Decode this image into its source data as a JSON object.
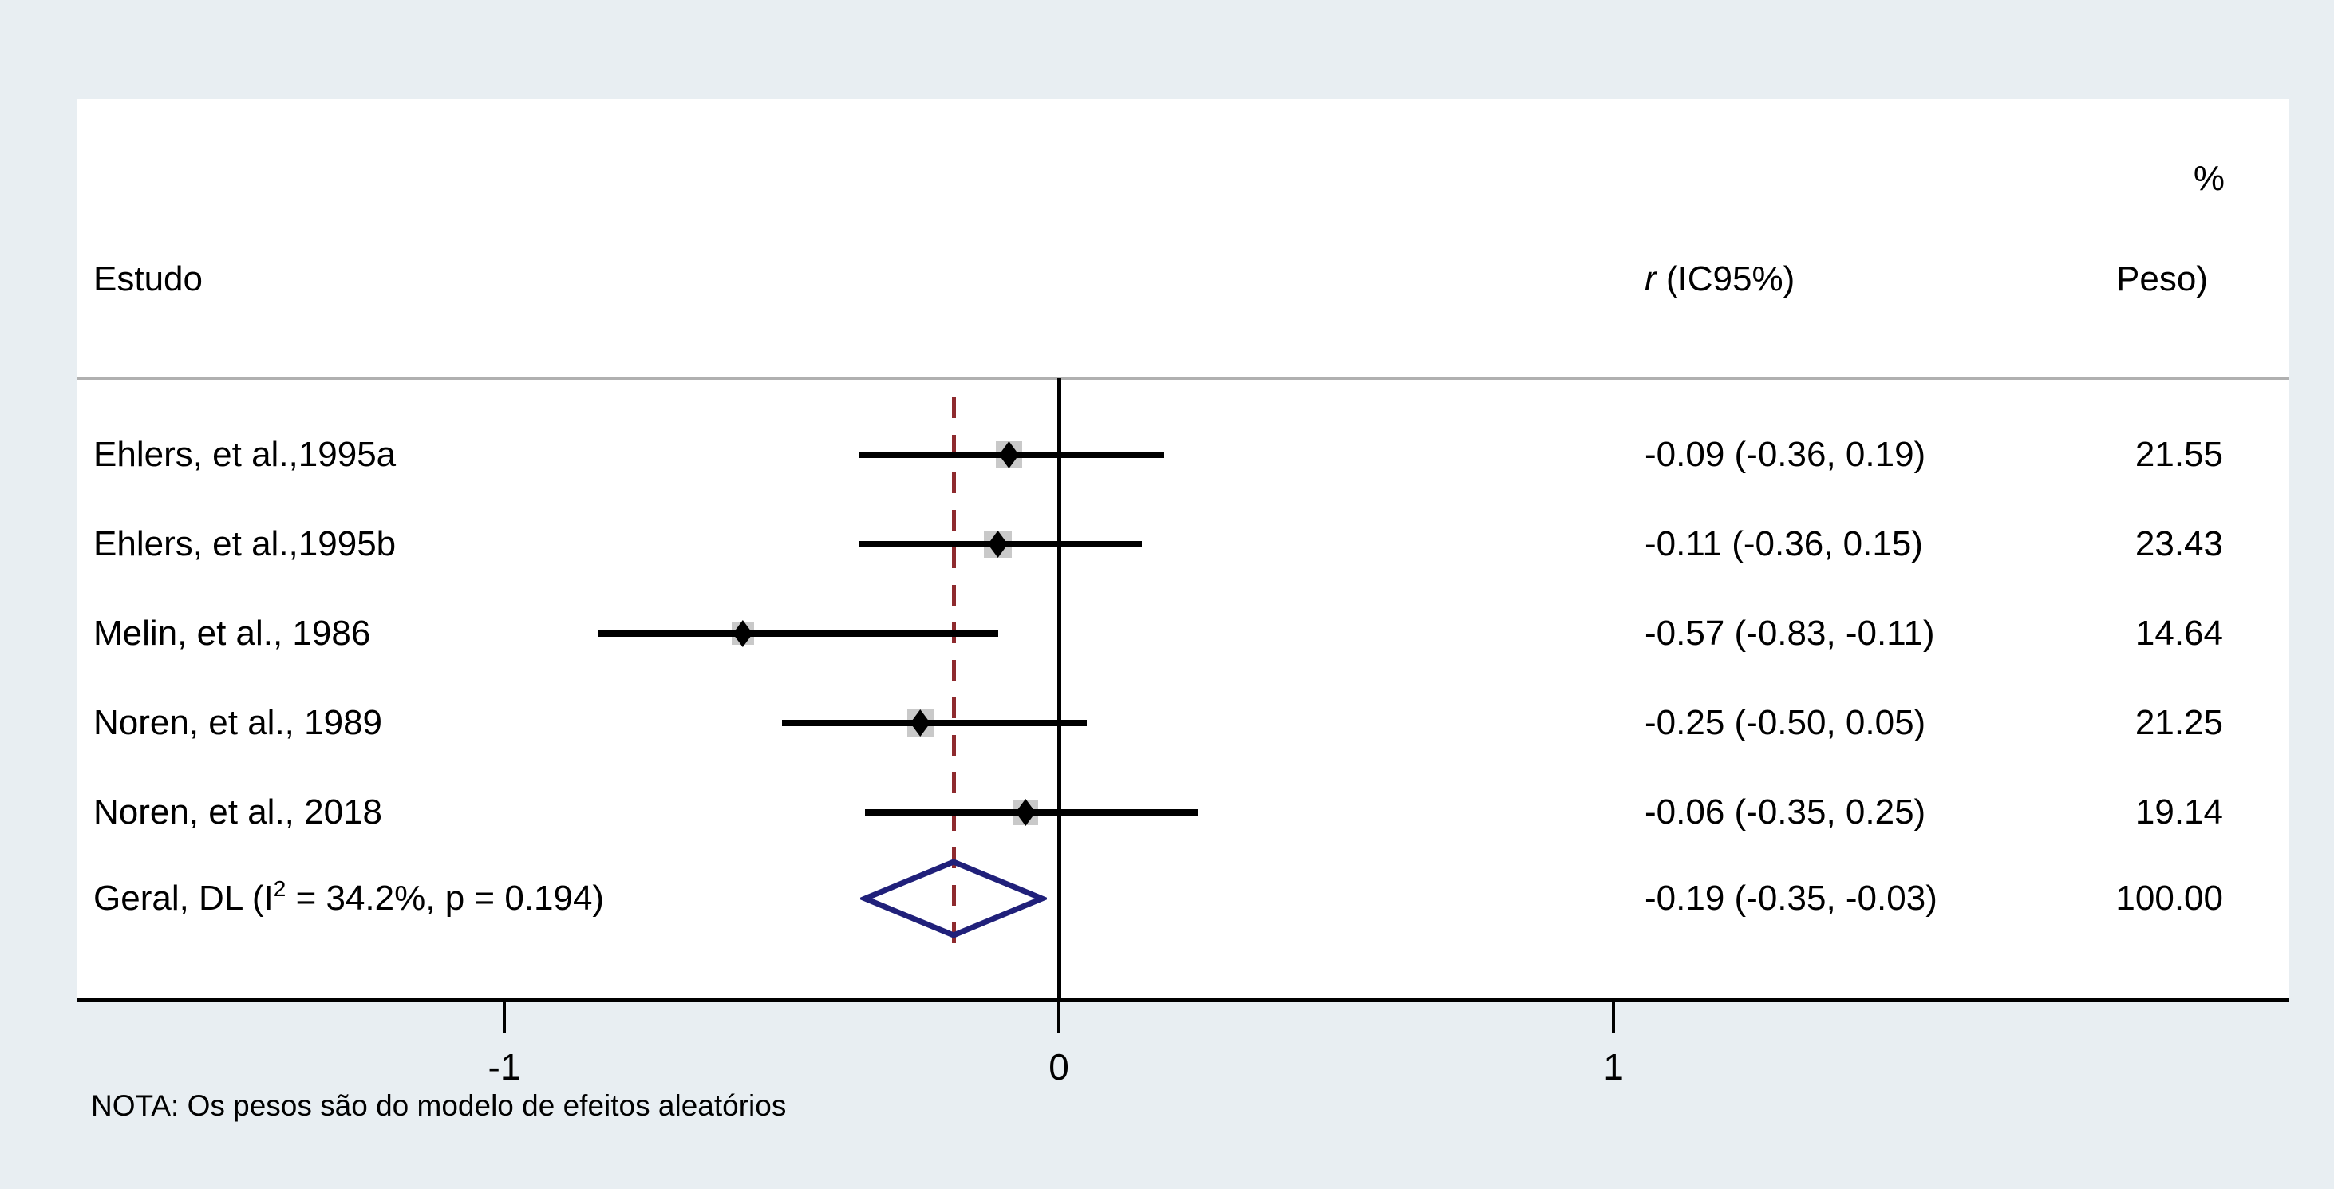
{
  "headers": {
    "study": "Estudo",
    "effect_r": "r",
    "effect_rest": " (IC95%)",
    "weight_pct": "%",
    "weight_label": "Peso)"
  },
  "note": "NOTA: Os pesos são do modelo de efeitos aleatórios",
  "colors": {
    "background": "#e8eef2",
    "panel": "#ffffff",
    "axis": "#000000",
    "separator": "#b0b0b0",
    "null_line": "#000000",
    "overall_dashed_line": "#8e2a2e",
    "overall_diamond": "#20207a",
    "weight_square": "#c9c9c9",
    "marker": "#000000"
  },
  "chart_data": {
    "type": "forest",
    "effect_measure": "r (IC95%)",
    "studies": [
      {
        "label": "Ehlers, et al.,1995a",
        "estimate": -0.09,
        "ci_low": -0.36,
        "ci_high": 0.19,
        "weight": 21.55,
        "effect_text": "-0.09 (-0.36, 0.19)",
        "weight_text": "21.55"
      },
      {
        "label": "Ehlers, et al.,1995b",
        "estimate": -0.11,
        "ci_low": -0.36,
        "ci_high": 0.15,
        "weight": 23.43,
        "effect_text": "-0.11 (-0.36, 0.15)",
        "weight_text": "23.43"
      },
      {
        "label": "Melin, et al., 1986",
        "estimate": -0.57,
        "ci_low": -0.83,
        "ci_high": -0.11,
        "weight": 14.64,
        "effect_text": "-0.57 (-0.83, -0.11)",
        "weight_text": "14.64"
      },
      {
        "label": "Noren, et al., 1989",
        "estimate": -0.25,
        "ci_low": -0.5,
        "ci_high": 0.05,
        "weight": 21.25,
        "effect_text": "-0.25 (-0.50, 0.05)",
        "weight_text": "21.25"
      },
      {
        "label": "Noren, et al., 2018",
        "estimate": -0.06,
        "ci_low": -0.35,
        "ci_high": 0.25,
        "weight": 19.14,
        "effect_text": "-0.06 (-0.35, 0.25)",
        "weight_text": "19.14"
      }
    ],
    "overall": {
      "label_prefix": "Geral, DL (I",
      "label_sup": "2",
      "label_suffix": " = 34.2%, p = 0.194)",
      "estimate": -0.19,
      "ci_low": -0.35,
      "ci_high": -0.03,
      "effect_text": "-0.19 (-0.35, -0.03)",
      "weight_text": "100.00",
      "i_squared": "34.2%",
      "p_value": "0.194"
    },
    "x_ticks": [
      {
        "value": -1,
        "label": "-1"
      },
      {
        "value": 0,
        "label": "0"
      },
      {
        "value": 1,
        "label": "1"
      }
    ],
    "xlim": [
      -1.77,
      2.22
    ],
    "null_value": 0,
    "legend_position": "none",
    "grid": false
  }
}
